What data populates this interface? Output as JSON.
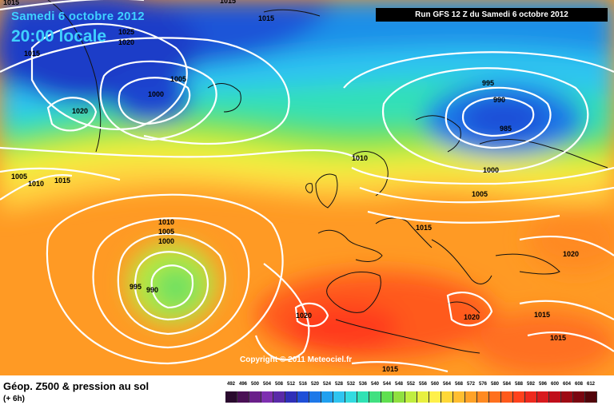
{
  "map": {
    "date_title": "Samedi 6 octobre 2012",
    "time_title": "20:00 locale",
    "run_info": "Run GFS 12 Z du Samedi 6 octobre 2012",
    "copyright": "Copyright © 2011 Meteociel.fr"
  },
  "isobar_labels": [
    {
      "text": "1015"
    },
    {
      "text": "1015"
    },
    {
      "text": "1025"
    },
    {
      "text": "1020"
    },
    {
      "text": "1015"
    },
    {
      "text": "1005"
    },
    {
      "text": "1000"
    },
    {
      "text": "1020"
    },
    {
      "text": "1015"
    },
    {
      "text": "1005"
    },
    {
      "text": "1010"
    },
    {
      "text": "1015"
    },
    {
      "text": "995"
    },
    {
      "text": "990"
    },
    {
      "text": "985"
    },
    {
      "text": "1010"
    },
    {
      "text": "1000"
    },
    {
      "text": "1005"
    },
    {
      "text": "1015"
    },
    {
      "text": "1010"
    },
    {
      "text": "1005"
    },
    {
      "text": "1000"
    },
    {
      "text": "995"
    },
    {
      "text": "990"
    },
    {
      "text": "1020"
    },
    {
      "text": "1020"
    },
    {
      "text": "1020"
    },
    {
      "text": "1015"
    },
    {
      "text": "1015"
    },
    {
      "text": "1015"
    }
  ],
  "legend": {
    "title": "Géop. Z500 & pression au sol",
    "subtitle": "(+ 6h)",
    "scale_values": [
      "492",
      "496",
      "500",
      "504",
      "508",
      "512",
      "516",
      "520",
      "524",
      "528",
      "532",
      "536",
      "540",
      "544",
      "548",
      "552",
      "556",
      "560",
      "564",
      "568",
      "572",
      "576",
      "580",
      "584",
      "588",
      "592",
      "596",
      "600",
      "604",
      "608",
      "612"
    ],
    "scale_colors": [
      "#2a0a2e",
      "#4a1055",
      "#6a1f8a",
      "#7e2fb0",
      "#5a2aa8",
      "#2f2fb8",
      "#1f4fd8",
      "#1e78e8",
      "#20a0ef",
      "#2fc4f0",
      "#33dbe0",
      "#30e2b4",
      "#40e080",
      "#60e050",
      "#90e040",
      "#c0ee40",
      "#e8f040",
      "#fff04a",
      "#ffd838",
      "#ffbe30",
      "#ffa228",
      "#ff8a22",
      "#ff701e",
      "#ff5a1c",
      "#ff421c",
      "#ee2a1e",
      "#d81a1e",
      "#c00e1a",
      "#9e0a14",
      "#7a0610",
      "#52040a"
    ]
  }
}
